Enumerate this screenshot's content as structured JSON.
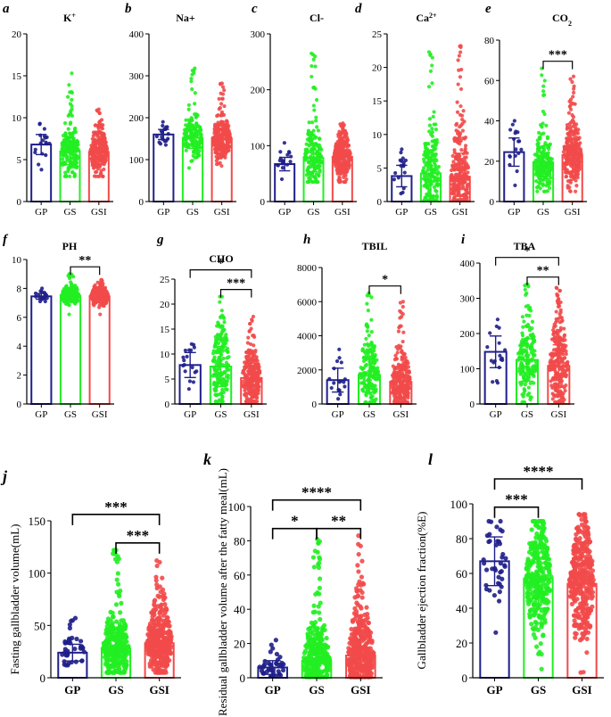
{
  "figure": {
    "background": "#ffffff"
  },
  "palette": {
    "GP": "#1f1f8a",
    "GS": "#22ee22",
    "GSI": "#f24a4a"
  },
  "chart_data": [
    {
      "id": "a",
      "letter": "a",
      "title": "K",
      "title_sup": "+",
      "type": "bar",
      "categories": [
        "GP",
        "GS",
        "GSI"
      ],
      "values": [
        6.8,
        6.0,
        5.9
      ],
      "sd": [
        1.2,
        1.6,
        1.5
      ],
      "ylim": [
        0,
        20
      ],
      "yticks": [
        0,
        5,
        10,
        15,
        20
      ],
      "scatter_max": [
        9.3,
        15.3,
        11.0
      ],
      "scatter_min": [
        3.8,
        3.0,
        3.0
      ],
      "n": [
        18,
        180,
        260
      ],
      "significance": []
    },
    {
      "id": "b",
      "letter": "b",
      "title": "Na+",
      "title_sup": "",
      "type": "bar",
      "categories": [
        "GP",
        "GS",
        "GSI"
      ],
      "values": [
        160,
        152,
        150
      ],
      "sd": [
        12,
        25,
        25
      ],
      "ylim": [
        0,
        400
      ],
      "yticks": [
        0,
        100,
        200,
        300,
        400
      ],
      "scatter_max": [
        190,
        318,
        282
      ],
      "scatter_min": [
        135,
        80,
        85
      ],
      "n": [
        18,
        180,
        260
      ],
      "significance": []
    },
    {
      "id": "c",
      "letter": "c",
      "title": "Cl-",
      "title_sup": "",
      "type": "bar",
      "categories": [
        "GP",
        "GS",
        "GSI"
      ],
      "values": [
        67,
        78,
        80
      ],
      "sd": [
        12,
        25,
        20
      ],
      "ylim": [
        0,
        300
      ],
      "yticks": [
        0,
        100,
        200,
        300
      ],
      "scatter_max": [
        105,
        265,
        140
      ],
      "scatter_min": [
        40,
        35,
        35
      ],
      "n": [
        18,
        180,
        260
      ],
      "significance": []
    },
    {
      "id": "d",
      "letter": "d",
      "title": "Ca",
      "title_sup": "2+",
      "type": "bar",
      "categories": [
        "GP",
        "GS",
        "GSI"
      ],
      "values": [
        3.8,
        4.2,
        3.7
      ],
      "sd": [
        1.6,
        3.5,
        3.5
      ],
      "ylim": [
        0,
        25
      ],
      "yticks": [
        0,
        5,
        10,
        15,
        20,
        25
      ],
      "scatter_max": [
        7.8,
        22.3,
        23.2
      ],
      "scatter_min": [
        1.2,
        0.2,
        0.2
      ],
      "n": [
        18,
        180,
        260
      ],
      "significance": []
    },
    {
      "id": "e",
      "letter": "e",
      "title": "CO",
      "title_sub": "2",
      "title_sup": "",
      "type": "bar",
      "categories": [
        "GP",
        "GS",
        "GSI"
      ],
      "values": [
        24.5,
        19.5,
        23.0
      ],
      "sd": [
        7,
        7,
        8
      ],
      "ylim": [
        0,
        80
      ],
      "yticks": [
        0,
        20,
        40,
        60,
        80
      ],
      "scatter_max": [
        40,
        66,
        62
      ],
      "scatter_min": [
        8,
        5,
        5
      ],
      "n": [
        18,
        180,
        260
      ],
      "significance": [
        {
          "from": "GS",
          "to": "GSI",
          "label": "***",
          "level": 0
        }
      ]
    },
    {
      "id": "f",
      "letter": "f",
      "title": "PH",
      "title_sup": "",
      "type": "bar",
      "categories": [
        "GP",
        "GS",
        "GSI"
      ],
      "values": [
        7.45,
        7.5,
        7.45
      ],
      "sd": [
        0.2,
        0.3,
        0.3
      ],
      "ylim": [
        0,
        10
      ],
      "yticks": [
        0,
        2,
        4,
        6,
        8,
        10
      ],
      "scatter_max": [
        8.0,
        9.0,
        8.6
      ],
      "scatter_min": [
        7.1,
        6.2,
        6.2
      ],
      "n": [
        18,
        180,
        260
      ],
      "significance": [
        {
          "from": "GS",
          "to": "GSI",
          "label": "**",
          "level": 0
        }
      ]
    },
    {
      "id": "g",
      "letter": "g",
      "title": "CHO",
      "title_sup": "",
      "type": "bar",
      "categories": [
        "GP",
        "GS",
        "GSI"
      ],
      "values": [
        7.8,
        7.5,
        5.2
      ],
      "sd": [
        2.5,
        4,
        3
      ],
      "ylim": [
        0,
        25
      ],
      "yticks": [
        0,
        5,
        10,
        15,
        20,
        25
      ],
      "scatter_max": [
        12,
        21.5,
        17.5
      ],
      "scatter_min": [
        3,
        0.5,
        0.5
      ],
      "n": [
        18,
        180,
        260
      ],
      "significance": [
        {
          "from": "GS",
          "to": "GSI",
          "label": "***",
          "level": 0
        },
        {
          "from": "GP",
          "to": "GSI",
          "label": "*",
          "level": 1
        }
      ]
    },
    {
      "id": "h",
      "letter": "h",
      "title": "TBIL",
      "title_sup": "",
      "type": "bar",
      "categories": [
        "GP",
        "GS",
        "GSI"
      ],
      "values": [
        1400,
        1700,
        1300
      ],
      "sd": [
        700,
        1000,
        900
      ],
      "ylim": [
        0,
        8000
      ],
      "yticks": [
        0,
        2000,
        4000,
        6000,
        8000
      ],
      "scatter_max": [
        3200,
        6500,
        6000
      ],
      "scatter_min": [
        300,
        100,
        100
      ],
      "n": [
        18,
        180,
        260
      ],
      "significance": [
        {
          "from": "GS",
          "to": "GSI",
          "label": "*",
          "level": 0
        }
      ]
    },
    {
      "id": "i",
      "letter": "i",
      "title": "TBA",
      "title_sup": "",
      "type": "bar",
      "categories": [
        "GP",
        "GS",
        "GSI"
      ],
      "values": [
        148,
        125,
        108
      ],
      "sd": [
        45,
        60,
        60
      ],
      "ylim": [
        0,
        400
      ],
      "yticks": [
        0,
        100,
        200,
        300,
        400
      ],
      "scatter_max": [
        240,
        340,
        330
      ],
      "scatter_min": [
        60,
        5,
        5
      ],
      "n": [
        18,
        180,
        260
      ],
      "significance": [
        {
          "from": "GS",
          "to": "GSI",
          "label": "**",
          "level": 0
        },
        {
          "from": "GP",
          "to": "GSI",
          "label": "*",
          "level": 1
        }
      ]
    },
    {
      "id": "j",
      "letter": "j",
      "title": "",
      "title_sup": "",
      "type": "bar",
      "ylabel": "Fasting gallbladder volume(mL)",
      "categories": [
        "GP",
        "GS",
        "GSI"
      ],
      "values": [
        24,
        28,
        33
      ],
      "sd": [
        8,
        15,
        18
      ],
      "ylim": [
        0,
        150
      ],
      "yticks": [
        0,
        50,
        100,
        150
      ],
      "scatter_max": [
        57,
        122,
        112
      ],
      "scatter_min": [
        12,
        5,
        5
      ],
      "n": [
        40,
        300,
        360
      ],
      "significance": [
        {
          "from": "GS",
          "to": "GSI",
          "label": "***",
          "level": 0
        },
        {
          "from": "GP",
          "to": "GSI",
          "label": "***",
          "level": 1
        }
      ]
    },
    {
      "id": "k",
      "letter": "k",
      "title": "",
      "title_sup": "",
      "type": "bar",
      "ylabel": "Residual  gallbladder volume after the fatty meal(mL)",
      "categories": [
        "GP",
        "GS",
        "GSI"
      ],
      "values": [
        6,
        10,
        13
      ],
      "sd": [
        4,
        10,
        13
      ],
      "ylim": [
        0,
        100
      ],
      "yticks": [
        0,
        20,
        40,
        60,
        80,
        100
      ],
      "scatter_max": [
        22,
        81,
        83
      ],
      "scatter_min": [
        1,
        0.5,
        0.5
      ],
      "n": [
        40,
        300,
        360
      ],
      "significance": [
        {
          "from": "GP",
          "to": "GS",
          "label": "*",
          "level": 0
        },
        {
          "from": "GS",
          "to": "GSI",
          "label": "**",
          "level": 0
        },
        {
          "from": "GP",
          "to": "GSI",
          "label": "****",
          "level": 1
        }
      ]
    },
    {
      "id": "l",
      "letter": "l",
      "title": "",
      "title_sup": "",
      "type": "bar",
      "ylabel": "Gallbladder ejection  fraction(%E)",
      "categories": [
        "GP",
        "GS",
        "GSI"
      ],
      "values": [
        67,
        57,
        54
      ],
      "sd": [
        14,
        17,
        18
      ],
      "ylim": [
        0,
        100
      ],
      "yticks": [
        0,
        20,
        40,
        60,
        80,
        100
      ],
      "scatter_max": [
        90,
        90,
        94
      ],
      "scatter_min": [
        26,
        5,
        3
      ],
      "n": [
        40,
        300,
        360
      ],
      "significance": [
        {
          "from": "GP",
          "to": "GS",
          "label": "***",
          "level": 0
        },
        {
          "from": "GP",
          "to": "GSI",
          "label": "****",
          "level": 1
        }
      ]
    }
  ]
}
